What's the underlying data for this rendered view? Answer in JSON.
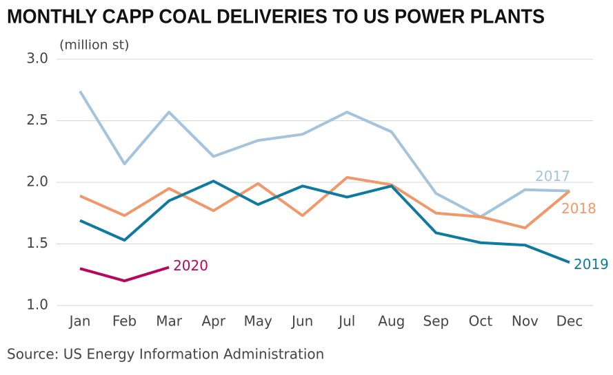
{
  "chart_data": {
    "type": "line",
    "title": "MONTHLY CAPP COAL DELIVERIES TO US POWER PLANTS",
    "subtitle": "(million st)",
    "source": "Source: US Energy Information Administration",
    "categories": [
      "Jan",
      "Feb",
      "Mar",
      "Apr",
      "May",
      "Jun",
      "Jul",
      "Aug",
      "Sep",
      "Oct",
      "Nov",
      "Dec"
    ],
    "series": [
      {
        "name": "2017",
        "color": "#a3c4dc",
        "values": [
          2.74,
          2.15,
          2.57,
          2.21,
          2.34,
          2.39,
          2.57,
          2.41,
          1.91,
          1.72,
          1.94,
          1.93
        ]
      },
      {
        "name": "2018",
        "color": "#f0986a",
        "values": [
          1.89,
          1.73,
          1.95,
          1.77,
          1.99,
          1.73,
          2.04,
          1.98,
          1.75,
          1.72,
          1.63,
          1.93
        ]
      },
      {
        "name": "2019",
        "color": "#0e7aa0",
        "values": [
          1.69,
          1.53,
          1.85,
          2.01,
          1.82,
          1.97,
          1.88,
          1.97,
          1.59,
          1.51,
          1.49,
          1.35
        ]
      },
      {
        "name": "2020",
        "color": "#b8055f",
        "values": [
          1.3,
          1.2,
          1.31,
          null,
          null,
          null,
          null,
          null,
          null,
          null,
          null,
          null
        ]
      }
    ],
    "ylim": [
      1.0,
      3.0
    ],
    "yticks": [
      {
        "value": 1.0,
        "label": "1.0"
      },
      {
        "value": 1.5,
        "label": "1.5"
      },
      {
        "value": 2.0,
        "label": "2.0"
      },
      {
        "value": 2.5,
        "label": "2.5"
      },
      {
        "value": 3.0,
        "label": "3.0"
      }
    ],
    "grid": true
  }
}
